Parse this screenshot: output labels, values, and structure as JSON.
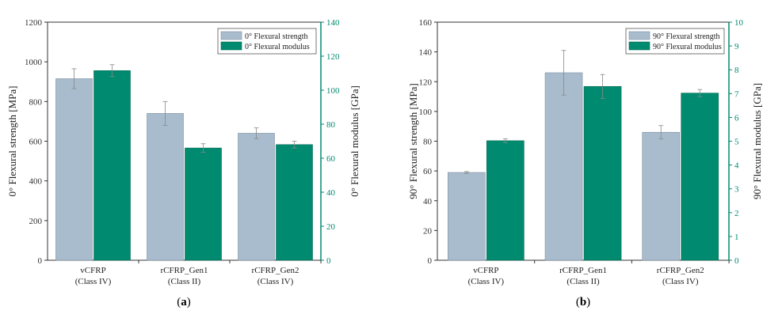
{
  "chart_data": [
    {
      "type": "bar",
      "panel_label": "a",
      "categories": [
        "vCFRP",
        "rCFRP_Gen1",
        "rCFRP_Gen2"
      ],
      "category_sublabels": [
        "(Class IV)",
        "(Class II)",
        "(Class IV)"
      ],
      "ylabel": "0° Flexural strength [MPa]",
      "y2label": "0° Flexural modulus [GPa]",
      "ylim": [
        0,
        1200
      ],
      "y2lim": [
        0,
        140
      ],
      "yticks": [
        0,
        200,
        400,
        600,
        800,
        1000,
        1200
      ],
      "y2ticks": [
        0,
        20,
        40,
        60,
        80,
        100,
        120,
        140
      ],
      "legend_position": "top-right",
      "series": [
        {
          "name": "0° Flexural strength",
          "axis": "left",
          "color": "#a9bccd",
          "values": [
            915,
            740,
            640
          ],
          "errors": [
            50,
            60,
            27
          ]
        },
        {
          "name": "0° Flexural modulus",
          "axis": "right",
          "color": "#008b70",
          "values": [
            111.5,
            66,
            68
          ],
          "errors": [
            3.5,
            2.5,
            2
          ]
        }
      ]
    },
    {
      "type": "bar",
      "panel_label": "b",
      "categories": [
        "vCFRP",
        "rCFRP_Gen1",
        "rCFRP_Gen2"
      ],
      "category_sublabels": [
        "(Class IV)",
        "(Class II)",
        "(Class IV)"
      ],
      "ylabel": "90° Flexural strength [MPa]",
      "y2label": "90° Flexural modulus [GPa]",
      "ylim": [
        0,
        160
      ],
      "y2lim": [
        0,
        10
      ],
      "yticks": [
        0,
        20,
        40,
        60,
        80,
        100,
        120,
        140,
        160
      ],
      "y2ticks": [
        0,
        1,
        2,
        3,
        4,
        5,
        6,
        7,
        8,
        9,
        10
      ],
      "legend_position": "top-right",
      "series": [
        {
          "name": "90° Flexural strength",
          "axis": "left",
          "color": "#a9bccd",
          "values": [
            59,
            126,
            86
          ],
          "errors": [
            0.6,
            15,
            4.5
          ]
        },
        {
          "name": "90° Flexural modulus",
          "axis": "right",
          "color": "#008b70",
          "values": [
            5.02,
            7.3,
            7.02
          ],
          "errors": [
            0.08,
            0.5,
            0.15
          ]
        }
      ]
    }
  ],
  "colors": {
    "axis_right": "#008b70",
    "bar_strength": "#a9bccd",
    "bar_modulus": "#008b70"
  }
}
